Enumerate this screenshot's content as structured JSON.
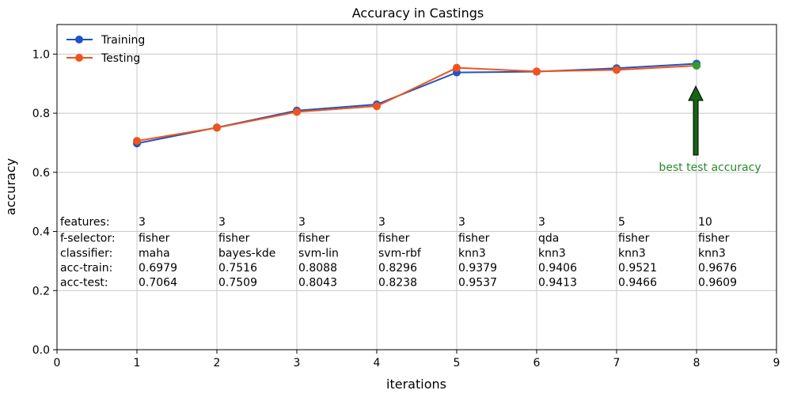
{
  "chart_data": {
    "type": "line",
    "title": "Accuracy in Castings",
    "xlabel": "iterations",
    "ylabel": "accuracy",
    "xlim": [
      0,
      9
    ],
    "ylim": [
      0.0,
      1.1
    ],
    "x_ticks": [
      "0",
      "1",
      "2",
      "3",
      "4",
      "5",
      "6",
      "7",
      "8",
      "9"
    ],
    "y_ticks": [
      "0.0",
      "0.2",
      "0.4",
      "0.6",
      "0.8",
      "1.0"
    ],
    "grid": true,
    "legend_position": "top-left",
    "x": [
      1,
      2,
      3,
      4,
      5,
      6,
      7,
      8
    ],
    "series": [
      {
        "name": "Training",
        "color": "#2153c0",
        "values": [
          0.6979,
          0.7516,
          0.8088,
          0.8296,
          0.9379,
          0.9406,
          0.9521,
          0.9676
        ]
      },
      {
        "name": "Testing",
        "color": "#f0541e",
        "values": [
          0.7064,
          0.7509,
          0.8043,
          0.8238,
          0.9537,
          0.9413,
          0.9466,
          0.9609
        ]
      }
    ],
    "best_point": {
      "x": 8,
      "y": 0.9609,
      "color": "#2ca02c"
    },
    "annotation": {
      "text": "best test accuracy",
      "color": "#2a8a2a",
      "arrow_color": "#156315"
    },
    "table": {
      "rows": [
        {
          "label": "features:",
          "values": [
            "3",
            "3",
            "3",
            "3",
            "3",
            "3",
            "5",
            "10"
          ],
          "y": 0.42
        },
        {
          "label": "f-selector:",
          "values": [
            "fisher",
            "fisher",
            "fisher",
            "fisher",
            "fisher",
            "qda",
            "fisher",
            "fisher"
          ],
          "y": 0.365
        },
        {
          "label": "classifier:",
          "values": [
            "maha",
            "bayes-kde",
            "svm-lin",
            "svm-rbf",
            "knn3",
            "knn3",
            "knn3",
            "knn3"
          ],
          "y": 0.315
        },
        {
          "label": "acc-train:",
          "values": [
            "0.6979",
            "0.7516",
            "0.8088",
            "0.8296",
            "0.9379",
            "0.9406",
            "0.9521",
            "0.9676"
          ],
          "y": 0.265
        },
        {
          "label": "acc-test:",
          "values": [
            "0.7064",
            "0.7509",
            "0.8043",
            "0.8238",
            "0.9537",
            "0.9413",
            "0.9466",
            "0.9609"
          ],
          "y": 0.215
        }
      ],
      "highlight_column": 8,
      "highlight_color": "#2a8a2a"
    }
  }
}
